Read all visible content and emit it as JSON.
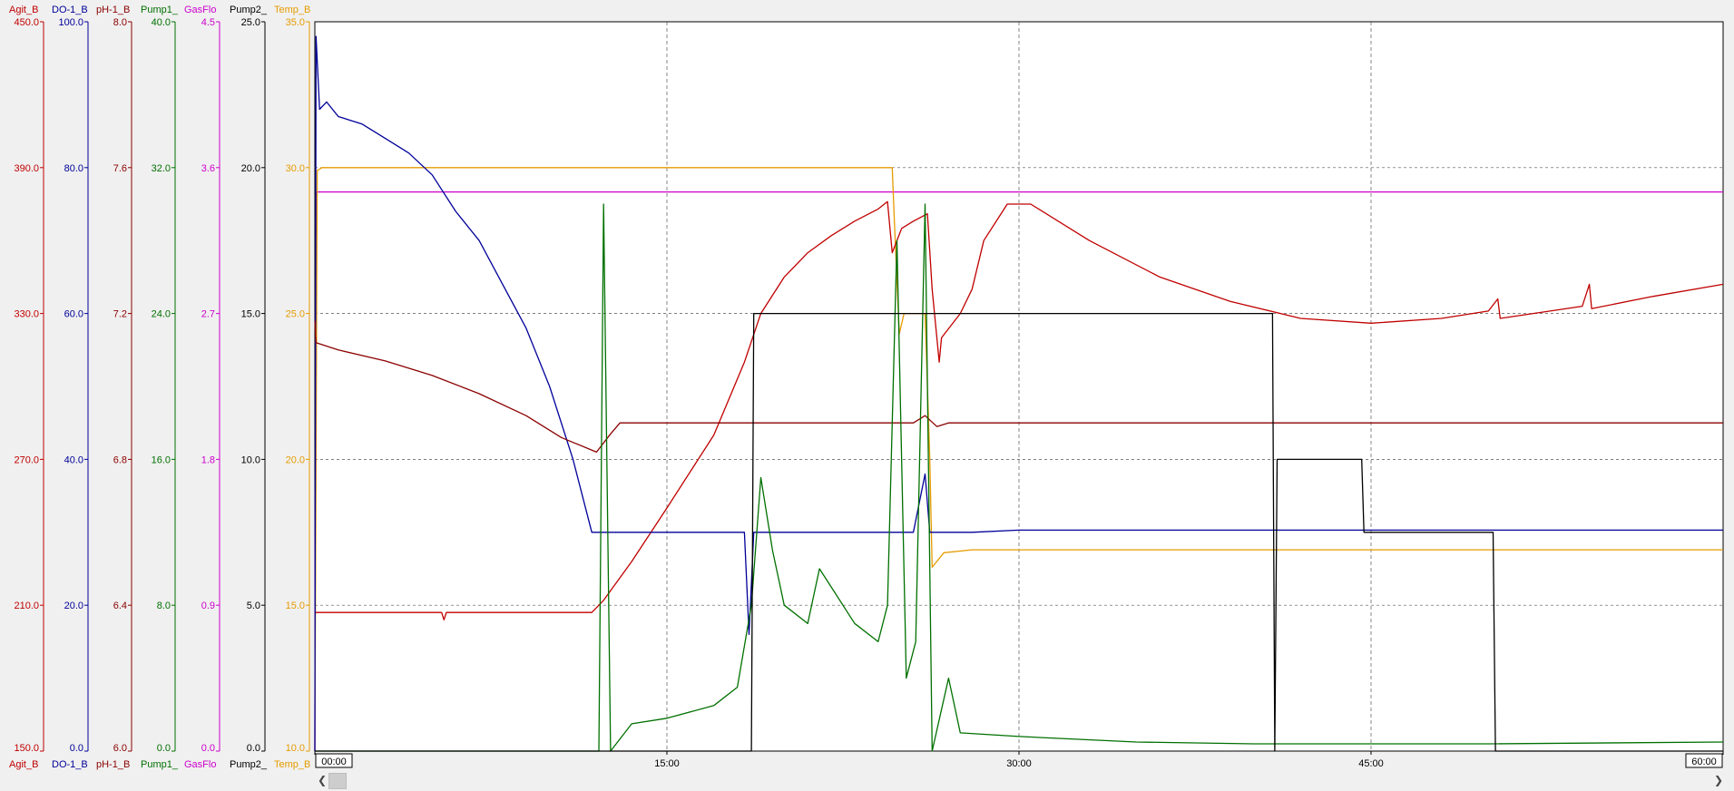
{
  "chart_data": {
    "type": "line",
    "axes": [
      {
        "name": "Agit_B",
        "min": 150,
        "max": 450,
        "ticks": [
          "450.0",
          "390.0",
          "330.0",
          "270.0",
          "210.0",
          "150.0"
        ],
        "color": "#c00000"
      },
      {
        "name": "DO-1_B",
        "min": 0,
        "max": 100,
        "ticks": [
          "100.0",
          "80.0",
          "60.0",
          "40.0",
          "20.0",
          "0.0"
        ],
        "color": "#000099"
      },
      {
        "name": "pH-1_B",
        "min": 6.0,
        "max": 8.0,
        "ticks": [
          "8.0",
          "7.6",
          "7.2",
          "6.8",
          "6.4",
          "6.0"
        ],
        "color": "#8b0000"
      },
      {
        "name": "Pump1_",
        "min": 0,
        "max": 40,
        "ticks": [
          "40.0",
          "32.0",
          "24.0",
          "16.0",
          "8.0",
          "0.0"
        ],
        "color": "#007000"
      },
      {
        "name": "GasFlo",
        "min": 0,
        "max": 4.5,
        "ticks": [
          "4.5",
          "3.6",
          "2.7",
          "1.8",
          "0.9",
          "0.0"
        ],
        "color": "#cc00cc"
      },
      {
        "name": "Pump2_",
        "min": 0,
        "max": 25,
        "ticks": [
          "25.0",
          "20.0",
          "15.0",
          "10.0",
          "5.0",
          "0.0"
        ],
        "color": "#000000"
      },
      {
        "name": "Temp_B",
        "min": 10,
        "max": 35,
        "ticks": [
          "35.0",
          "30.0",
          "25.0",
          "20.0",
          "15.0",
          "10.0"
        ],
        "color": "#e69b00"
      }
    ],
    "x_ticks": [
      "00:00",
      "15:00",
      "30:00",
      "45:00",
      "60:00"
    ],
    "x_range": [
      0,
      60
    ],
    "grid": true,
    "series": [
      {
        "name": "GasFlo",
        "axis": 4,
        "color": "#cc00cc",
        "points": [
          [
            0,
            0
          ],
          [
            0.05,
            3.45
          ],
          [
            0.3,
            3.45
          ],
          [
            60,
            3.45
          ]
        ]
      },
      {
        "name": "Temp_B",
        "axis": 6,
        "color": "#e69b00",
        "points": [
          [
            0,
            10.0
          ],
          [
            0.1,
            29.9
          ],
          [
            0.3,
            30.0
          ],
          [
            24.6,
            30.0
          ],
          [
            24.7,
            28.0
          ],
          [
            24.9,
            24.3
          ],
          [
            25.1,
            25.0
          ],
          [
            26.0,
            25.0
          ],
          [
            26.2,
            20.0
          ],
          [
            26.3,
            16.3
          ],
          [
            26.8,
            16.8
          ],
          [
            28,
            16.9
          ],
          [
            60,
            16.9
          ]
        ]
      },
      {
        "name": "Agit_B",
        "axis": 0,
        "color": "#c00000",
        "points": [
          [
            0,
            207
          ],
          [
            5.4,
            207
          ],
          [
            5.5,
            204
          ],
          [
            5.6,
            207
          ],
          [
            11.8,
            207
          ],
          [
            12.3,
            212
          ],
          [
            13.5,
            228
          ],
          [
            15,
            250
          ],
          [
            17,
            280
          ],
          [
            18.3,
            310
          ],
          [
            19,
            330
          ],
          [
            20,
            345
          ],
          [
            21,
            355
          ],
          [
            22,
            362
          ],
          [
            23,
            368
          ],
          [
            24,
            373
          ],
          [
            24.4,
            376
          ],
          [
            24.6,
            355
          ],
          [
            25,
            365
          ],
          [
            25.5,
            368
          ],
          [
            26.1,
            371
          ],
          [
            26.3,
            340
          ],
          [
            26.6,
            310
          ],
          [
            26.7,
            320
          ],
          [
            27.5,
            330
          ],
          [
            28,
            340
          ],
          [
            28.5,
            360
          ],
          [
            29.5,
            375
          ],
          [
            30.5,
            375
          ],
          [
            33,
            360
          ],
          [
            36,
            345
          ],
          [
            39,
            335
          ],
          [
            42,
            328
          ],
          [
            45,
            326
          ],
          [
            48,
            328
          ],
          [
            50,
            331
          ],
          [
            50.4,
            336
          ],
          [
            50.5,
            328
          ],
          [
            54,
            333
          ],
          [
            54.3,
            342
          ],
          [
            54.4,
            332
          ],
          [
            57,
            337
          ],
          [
            60,
            342
          ]
        ]
      },
      {
        "name": "DO-1_B",
        "axis": 1,
        "color": "#000099",
        "points": [
          [
            0,
            0
          ],
          [
            0.05,
            98
          ],
          [
            0.2,
            88
          ],
          [
            0.5,
            89
          ],
          [
            1,
            87
          ],
          [
            2,
            86
          ],
          [
            3,
            84
          ],
          [
            4,
            82
          ],
          [
            5,
            79
          ],
          [
            6,
            74
          ],
          [
            7,
            70
          ],
          [
            8,
            64
          ],
          [
            9,
            58
          ],
          [
            10,
            50
          ],
          [
            11,
            40
          ],
          [
            11.8,
            30
          ],
          [
            12.5,
            30
          ],
          [
            18.3,
            30
          ],
          [
            18.5,
            16
          ],
          [
            18.7,
            30
          ],
          [
            20,
            30
          ],
          [
            24,
            30
          ],
          [
            25.5,
            30
          ],
          [
            26.0,
            38
          ],
          [
            26.2,
            30
          ],
          [
            28,
            30
          ],
          [
            30,
            30.3
          ],
          [
            60,
            30.3
          ]
        ]
      },
      {
        "name": "pH-1_B",
        "axis": 2,
        "color": "#8b0000",
        "points": [
          [
            0,
            7.18
          ],
          [
            0.05,
            7.12
          ],
          [
            1,
            7.1
          ],
          [
            3,
            7.07
          ],
          [
            5,
            7.03
          ],
          [
            7,
            6.98
          ],
          [
            9,
            6.92
          ],
          [
            10.5,
            6.86
          ],
          [
            12,
            6.82
          ],
          [
            12.6,
            6.87
          ],
          [
            13,
            6.9
          ],
          [
            24,
            6.9
          ],
          [
            25.5,
            6.9
          ],
          [
            26,
            6.92
          ],
          [
            26.5,
            6.89
          ],
          [
            27,
            6.9
          ],
          [
            60,
            6.9
          ]
        ]
      },
      {
        "name": "Pump1_",
        "axis": 3,
        "color": "#007000",
        "points": [
          [
            0,
            0
          ],
          [
            12.1,
            0
          ],
          [
            12.3,
            30
          ],
          [
            12.6,
            0
          ],
          [
            13.5,
            1.5
          ],
          [
            15,
            1.8
          ],
          [
            17,
            2.5
          ],
          [
            18,
            3.5
          ],
          [
            18.6,
            8
          ],
          [
            19,
            15
          ],
          [
            19.5,
            11
          ],
          [
            20,
            8
          ],
          [
            21,
            7
          ],
          [
            21.5,
            10
          ],
          [
            22,
            9
          ],
          [
            23,
            7
          ],
          [
            24,
            6
          ],
          [
            24.4,
            8
          ],
          [
            24.8,
            28
          ],
          [
            25.2,
            4
          ],
          [
            25.6,
            6
          ],
          [
            26.0,
            30
          ],
          [
            26.3,
            0
          ],
          [
            27,
            4
          ],
          [
            27.5,
            1
          ],
          [
            30,
            0.8
          ],
          [
            35,
            0.5
          ],
          [
            40,
            0.4
          ],
          [
            50,
            0.4
          ],
          [
            60,
            0.5
          ]
        ]
      },
      {
        "name": "Pump2_",
        "axis": 5,
        "color": "#000000",
        "points": [
          [
            0,
            0
          ],
          [
            18.6,
            0
          ],
          [
            18.7,
            15
          ],
          [
            40.8,
            15
          ],
          [
            40.9,
            0
          ],
          [
            41.0,
            10
          ],
          [
            44.6,
            10
          ],
          [
            44.7,
            7.5
          ],
          [
            50.2,
            7.5
          ],
          [
            50.3,
            0
          ],
          [
            60,
            0
          ]
        ]
      }
    ]
  }
}
